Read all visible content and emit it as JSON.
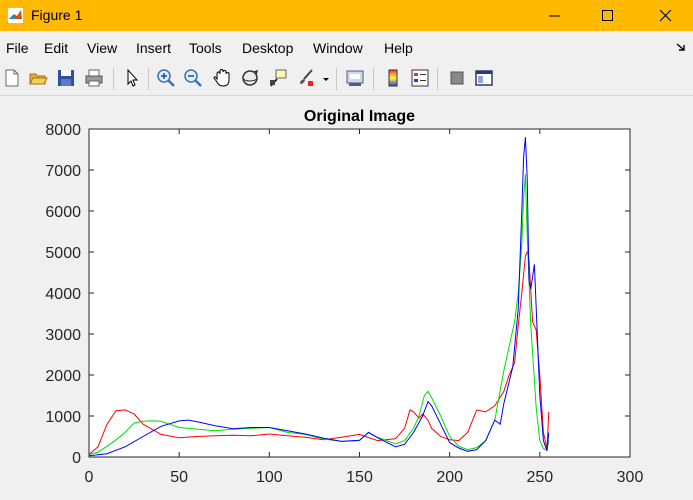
{
  "window": {
    "title": "Figure 1"
  },
  "menu": [
    "File",
    "Edit",
    "View",
    "Insert",
    "Tools",
    "Desktop",
    "Window",
    "Help"
  ],
  "toolbar": {
    "icons": [
      "new-figure-icon",
      "open-file-icon",
      "save-icon",
      "print-icon",
      "edit-plot-icon",
      "zoom-in-icon",
      "zoom-out-icon",
      "pan-icon",
      "rotate-3d-icon",
      "data-cursor-icon",
      "brush-icon",
      "link-plot-icon",
      "colorbar-icon",
      "legend-icon",
      "hide-plot-tools-icon",
      "show-plot-tools-icon"
    ]
  },
  "colors": {
    "titlebar": "#ffb900",
    "red": "#ff0000",
    "green": "#00dd00",
    "blue": "#0000ff"
  },
  "chart_data": {
    "type": "line",
    "title": "Original Image",
    "xlabel": "",
    "ylabel": "",
    "xlim": [
      0,
      300
    ],
    "ylim": [
      0,
      8000
    ],
    "xticks": [
      "0",
      "50",
      "100",
      "150",
      "200",
      "250",
      "300"
    ],
    "yticks": [
      "0",
      "1000",
      "2000",
      "3000",
      "4000",
      "5000",
      "6000",
      "7000",
      "8000"
    ],
    "grid": false,
    "series": [
      {
        "color": "#ff0000",
        "x": [
          0,
          5,
          10,
          15,
          20,
          25,
          30,
          40,
          50,
          60,
          70,
          80,
          90,
          100,
          110,
          120,
          130,
          140,
          150,
          160,
          170,
          175,
          178,
          180,
          183,
          185,
          188,
          190,
          195,
          200,
          205,
          210,
          215,
          220,
          225,
          230,
          233,
          236,
          238,
          240,
          242,
          243,
          244,
          246,
          248,
          250,
          252,
          254,
          255
        ],
        "y": [
          60,
          250,
          800,
          1130,
          1150,
          1050,
          800,
          550,
          470,
          500,
          520,
          530,
          520,
          560,
          520,
          480,
          420,
          480,
          550,
          400,
          450,
          700,
          1150,
          1100,
          950,
          1050,
          900,
          700,
          500,
          420,
          400,
          600,
          1150,
          1100,
          1250,
          1600,
          2000,
          2300,
          3200,
          4000,
          4900,
          5000,
          4800,
          3300,
          3100,
          2000,
          600,
          200,
          1100
        ]
      },
      {
        "color": "#00dd00",
        "x": [
          0,
          5,
          10,
          15,
          20,
          25,
          30,
          35,
          40,
          50,
          60,
          70,
          80,
          90,
          100,
          110,
          120,
          130,
          140,
          150,
          155,
          160,
          170,
          175,
          180,
          183,
          186,
          188,
          190,
          195,
          200,
          205,
          210,
          215,
          220,
          225,
          230,
          233,
          236,
          238,
          240,
          241,
          242,
          243,
          245,
          248,
          250,
          252,
          254,
          255
        ],
        "y": [
          60,
          120,
          260,
          420,
          600,
          830,
          870,
          880,
          870,
          720,
          680,
          640,
          680,
          700,
          720,
          600,
          550,
          440,
          380,
          400,
          600,
          480,
          320,
          400,
          700,
          1000,
          1500,
          1600,
          1450,
          1000,
          500,
          260,
          180,
          230,
          400,
          900,
          2100,
          2700,
          3300,
          4000,
          5200,
          6300,
          6900,
          5400,
          3200,
          1200,
          400,
          200,
          180,
          400
        ]
      },
      {
        "color": "#0000ff",
        "x": [
          0,
          10,
          20,
          30,
          40,
          50,
          55,
          60,
          70,
          80,
          90,
          100,
          110,
          120,
          130,
          140,
          150,
          155,
          160,
          170,
          175,
          180,
          185,
          188,
          190,
          195,
          200,
          205,
          210,
          215,
          220,
          222,
          225,
          228,
          230,
          235,
          238,
          240,
          241,
          242,
          243,
          244,
          245,
          247,
          250,
          252,
          254,
          255
        ],
        "y": [
          30,
          80,
          250,
          500,
          750,
          880,
          900,
          860,
          760,
          690,
          720,
          720,
          640,
          560,
          460,
          380,
          410,
          600,
          470,
          250,
          310,
          600,
          1000,
          1350,
          1250,
          800,
          350,
          220,
          140,
          180,
          400,
          600,
          900,
          800,
          1300,
          2200,
          3600,
          6000,
          7300,
          7800,
          6800,
          4300,
          4100,
          4700,
          1500,
          400,
          150,
          600
        ]
      }
    ]
  }
}
